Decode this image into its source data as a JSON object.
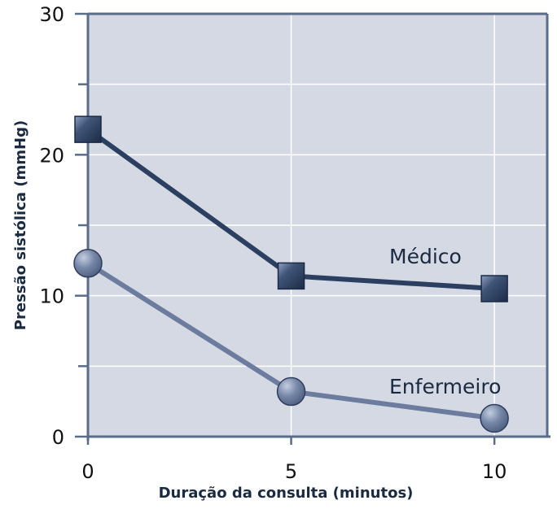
{
  "chart_data": {
    "type": "line",
    "title": "",
    "xlabel": "Duração da consulta (minutos)",
    "ylabel": "Pressão sistólica (mmHg)",
    "x": [
      0,
      5,
      10
    ],
    "xlim": [
      0,
      11.3
    ],
    "ylim": [
      0,
      30
    ],
    "xticks": [
      0,
      5,
      10
    ],
    "yticks": [
      0,
      10,
      20,
      30
    ],
    "x_tick_labels": [
      "0",
      "5",
      "10"
    ],
    "y_tick_labels": [
      "0",
      "10",
      "20",
      "30"
    ],
    "grid": true,
    "colors": {
      "plot_background": "#d5d9e4",
      "grid": "#ffffff",
      "axis": "#5a6c8a",
      "medico": "#2b3f61",
      "enfermeiro": "#6b7c9e"
    },
    "series": [
      {
        "name": "Médico",
        "marker": "square",
        "values": [
          21.8,
          11.4,
          10.5
        ]
      },
      {
        "name": "Enfermeiro",
        "marker": "circle",
        "values": [
          12.3,
          3.2,
          1.3
        ]
      }
    ]
  }
}
